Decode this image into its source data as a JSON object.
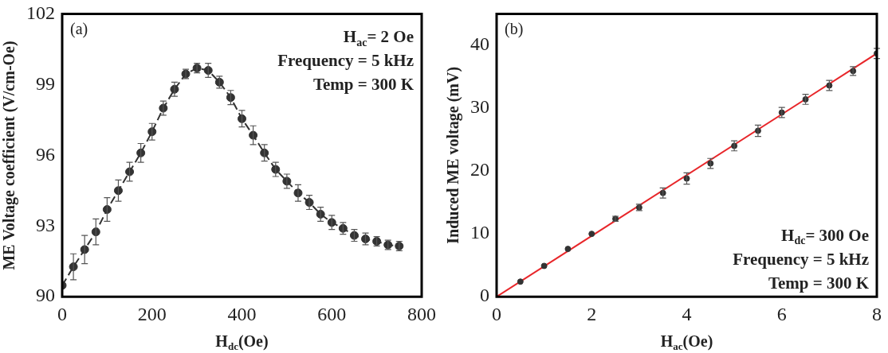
{
  "chart_data": [
    {
      "type": "line",
      "xlabel": "H$_{dc}$(Oe)",
      "ylabel": "ME Voltage coefficient (V/cm-Oe)",
      "xlim": [
        0,
        800
      ],
      "xticks": [
        0,
        200,
        400,
        600,
        800
      ],
      "ylim": [
        90,
        102
      ],
      "yticks": [
        90,
        93,
        96,
        99,
        102
      ],
      "grid": false,
      "marker": "circle",
      "line_style": "dashed",
      "annotations": [
        "(a)",
        "H$_{ac}$= 2 Oe",
        "Frequency = 5 kHz",
        "Temp = 300 K"
      ],
      "series": [
        {
          "color": "#333333",
          "x": [
            0,
            25,
            50,
            75,
            100,
            125,
            150,
            175,
            200,
            225,
            250,
            275,
            300,
            325,
            350,
            375,
            400,
            425,
            450,
            475,
            500,
            525,
            550,
            575,
            600,
            625,
            650,
            675,
            700,
            725,
            750
          ],
          "values": [
            90.48,
            91.27,
            92.0,
            92.75,
            93.7,
            94.5,
            95.3,
            96.1,
            97.0,
            98.0,
            98.8,
            99.45,
            99.7,
            99.6,
            99.1,
            98.45,
            97.55,
            96.85,
            96.1,
            95.4,
            94.9,
            94.4,
            94.0,
            93.5,
            93.15,
            92.9,
            92.6,
            92.45,
            92.35,
            92.2,
            92.15
          ],
          "errors": [
            null,
            0.55,
            0.6,
            0.55,
            0.5,
            0.45,
            0.4,
            0.4,
            0.35,
            0.3,
            0.3,
            0.2,
            0.2,
            0.3,
            0.25,
            0.3,
            0.35,
            0.4,
            0.35,
            0.3,
            0.3,
            0.35,
            0.3,
            0.3,
            0.3,
            0.25,
            0.25,
            0.25,
            0.2,
            0.2,
            0.2
          ]
        }
      ]
    },
    {
      "type": "scatter",
      "xlabel": "H$_{ac}$(Oe)",
      "ylabel": "Induced ME voltage (mV)",
      "xlim": [
        0,
        8
      ],
      "xticks": [
        0,
        2,
        4,
        6,
        8
      ],
      "ylim": [
        0,
        45
      ],
      "yticks": [
        0,
        10,
        20,
        30,
        40
      ],
      "grid": false,
      "annotations": [
        "(b)",
        "H$_{dc}$= 300 Oe",
        "Frequency = 5 kHz",
        "Temp = 300 K"
      ],
      "series": [
        {
          "color": "#333333",
          "marker": "circle",
          "x": [
            0.5,
            1,
            1.5,
            2,
            2.5,
            3,
            3.5,
            4,
            4.5,
            5,
            5.5,
            6,
            6.5,
            7,
            7.5,
            8
          ],
          "values": [
            2.4,
            4.9,
            7.6,
            10.0,
            12.4,
            14.2,
            16.5,
            18.8,
            21.2,
            24.0,
            26.4,
            29.3,
            31.4,
            33.6,
            35.9,
            38.7
          ],
          "errors": [
            null,
            null,
            null,
            null,
            0.4,
            0.5,
            0.8,
            0.9,
            0.8,
            0.8,
            0.9,
            0.8,
            0.8,
            0.8,
            0.7,
            0.8
          ]
        },
        {
          "type": "line",
          "color": "#e8262a",
          "line_style": "solid",
          "x": [
            0,
            8
          ],
          "values": [
            0,
            38.7
          ]
        }
      ]
    }
  ]
}
